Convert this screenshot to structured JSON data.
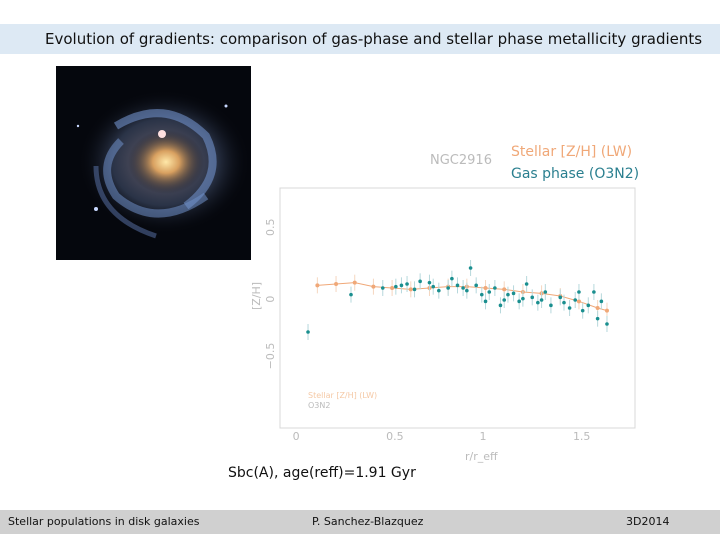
{
  "slide": {
    "title": "Evolution of gradients: comparison of gas-phase and stellar phase metallicity gradients",
    "legend_stellar": "Stellar [Z/H] (LW)",
    "legend_gas": "Gas phase (O3N2)",
    "caption": "Sbc(A), age(reff)=1.91 Gyr",
    "footer_left": "Stellar populations in disk galaxies",
    "footer_center": "P. Sanchez-Blazquez",
    "footer_right": "3D2014"
  },
  "colors": {
    "stellar": "#f0a878",
    "gas": "#1a8f8f",
    "title_bar": "#dde9f4",
    "footer_bar": "#d0d0d0"
  },
  "chart_data": {
    "type": "scatter",
    "title": "NGC2916",
    "xlabel": "r/r_eff",
    "ylabel": "[Z/H]",
    "xlim": [
      -0.1,
      1.8
    ],
    "ylim": [
      -1.0,
      0.8
    ],
    "x_ticks": [
      "0",
      "0.5",
      "1",
      "1.5"
    ],
    "y_ticks": [
      "0.5",
      "0",
      "−0.5"
    ],
    "inner_legend": [
      "Stellar [Z/H] (LW)",
      "O3N2"
    ],
    "series": [
      {
        "name": "Stellar [Z/H] (LW)",
        "color": "#f0a878",
        "x": [
          0.1,
          0.2,
          0.3,
          0.4,
          0.5,
          0.6,
          0.7,
          0.8,
          0.9,
          1.0,
          1.1,
          1.2,
          1.3,
          1.4,
          1.5,
          1.6,
          1.65
        ],
        "y": [
          0.07,
          0.08,
          0.09,
          0.06,
          0.05,
          0.04,
          0.05,
          0.06,
          0.06,
          0.05,
          0.04,
          0.02,
          0.01,
          -0.01,
          -0.05,
          -0.1,
          -0.12
        ]
      },
      {
        "name": "O3N2",
        "color": "#1a8f8f",
        "x": [
          0.05,
          0.28,
          0.45,
          0.52,
          0.55,
          0.58,
          0.62,
          0.65,
          0.7,
          0.72,
          0.75,
          0.8,
          0.82,
          0.85,
          0.88,
          0.9,
          0.92,
          0.95,
          0.98,
          1.0,
          1.02,
          1.05,
          1.08,
          1.1,
          1.12,
          1.15,
          1.18,
          1.2,
          1.22,
          1.25,
          1.28,
          1.3,
          1.32,
          1.35,
          1.4,
          1.42,
          1.45,
          1.48,
          1.5,
          1.52,
          1.55,
          1.58,
          1.6,
          1.62,
          1.65
        ],
        "y": [
          -0.28,
          0.0,
          0.05,
          0.06,
          0.07,
          0.08,
          0.04,
          0.1,
          0.09,
          0.06,
          0.03,
          0.05,
          0.12,
          0.07,
          0.05,
          0.03,
          0.2,
          0.07,
          0.0,
          -0.05,
          0.02,
          0.05,
          -0.08,
          -0.04,
          0.0,
          0.01,
          -0.05,
          -0.03,
          0.08,
          -0.02,
          -0.06,
          -0.04,
          0.02,
          -0.08,
          -0.02,
          -0.06,
          -0.1,
          -0.04,
          0.02,
          -0.12,
          -0.08,
          0.02,
          -0.18,
          -0.05,
          -0.22
        ]
      }
    ]
  }
}
